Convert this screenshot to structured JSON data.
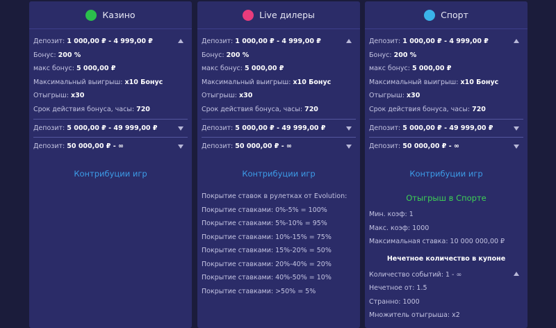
{
  "columns": [
    {
      "title": "Казино",
      "tiers": [
        {
          "label": "Депозит:",
          "value": "1 000,00 ₽ - 4 999,00 ₽",
          "details": [
            {
              "label": "Бонус:",
              "value": "200 %"
            },
            {
              "label": "макс бонус:",
              "value": "5 000,00 ₽"
            },
            {
              "label": "Максимальный выигрыш:",
              "value": "x10 Бонус"
            },
            {
              "label": "Отыгрыш:",
              "value": "x30"
            },
            {
              "label": "Срок действия бонуса, часы:",
              "value": "720"
            }
          ]
        },
        {
          "label": "Депозит:",
          "value": "5 000,00 ₽ - 49 999,00 ₽"
        },
        {
          "label": "Депозит:",
          "value": "50 000,00 ₽ - ∞"
        }
      ],
      "link": "Контрибуции игр"
    },
    {
      "title": "Live дилеры",
      "tiers": [
        {
          "label": "Депозит:",
          "value": "1 000,00 ₽ - 4 999,00 ₽",
          "details": [
            {
              "label": "Бонус:",
              "value": "200 %"
            },
            {
              "label": "макс бонус:",
              "value": "5 000,00 ₽"
            },
            {
              "label": "Максимальный выигрыш:",
              "value": "x10 Бонус"
            },
            {
              "label": "Отыгрыш:",
              "value": "x30"
            },
            {
              "label": "Срок действия бонуса, часы:",
              "value": "720"
            }
          ]
        },
        {
          "label": "Депозит:",
          "value": "5 000,00 ₽ - 49 999,00 ₽"
        },
        {
          "label": "Депозит:",
          "value": "50 000,00 ₽ - ∞"
        }
      ],
      "link": "Контрибуции игр",
      "notes": [
        "Покрытие ставок в рулетках от Evolution:",
        "Покрытие ставками: 0%-5% = 100%",
        "Покрытие ставками: 5%-10% = 95%",
        "Покрытие ставками: 10%-15% = 75%",
        "Покрытие ставками: 15%-20% = 50%",
        "Покрытие ставками: 20%-40% = 20%",
        "Покрытие ставками: 40%-50% = 10%",
        "Покрытие ставками: >50% = 5%"
      ]
    },
    {
      "title": "Спорт",
      "tiers": [
        {
          "label": "Депозит:",
          "value": "1 000,00 ₽ - 4 999,00 ₽",
          "details": [
            {
              "label": "Бонус:",
              "value": "200 %"
            },
            {
              "label": "макс бонус:",
              "value": "5 000,00 ₽"
            },
            {
              "label": "Максимальный выигрыш:",
              "value": "x10 Бонус"
            },
            {
              "label": "Отыгрыш:",
              "value": "x30"
            },
            {
              "label": "Срок действия бонуса, часы:",
              "value": "720"
            }
          ]
        },
        {
          "label": "Депозит:",
          "value": "5 000,00 ₽ - 49 999,00 ₽"
        },
        {
          "label": "Депозит:",
          "value": "50 000,00 ₽ - ∞"
        }
      ],
      "link": "Контрибуции игр",
      "sport": {
        "heading": "Отыгрыш в Спорте",
        "rows": [
          "Мин. коэф: 1",
          "Макс. коэф: 1000",
          "Максимальная ставка: 10 000 000,00 ₽"
        ],
        "subheading": "Нечетное количество в купоне",
        "subrows": [
          "Количество событий: 1 - ∞",
          "Нечетное от: 1.5",
          "Странно: 1000",
          "Множитель отыгрыша: x2"
        ]
      }
    }
  ]
}
